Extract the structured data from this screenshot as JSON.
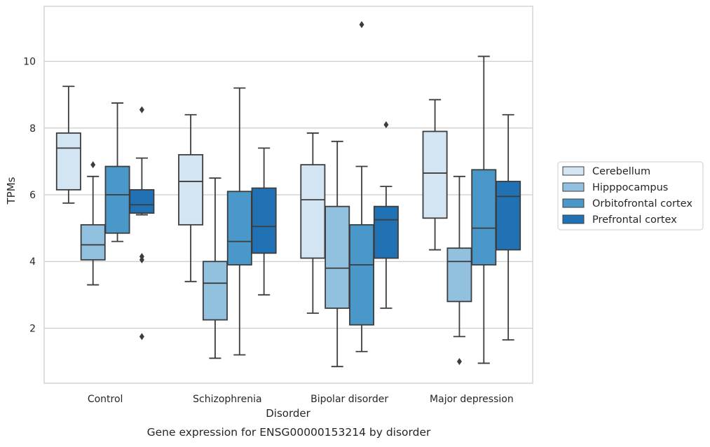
{
  "chart_data": {
    "type": "box",
    "title": "Gene expression for ENSG00000153214 by disorder",
    "xlabel": "Disorder",
    "ylabel": "TPMs",
    "categories": [
      "Control",
      "Schizophrenia",
      "Bipolar disorder",
      "Major depression"
    ],
    "ylim": [
      0.35,
      11.65
    ],
    "yticks": [
      2,
      4,
      6,
      8,
      10
    ],
    "grid": true,
    "legend_position": "right",
    "series": [
      {
        "name": "Cerebellum",
        "color": "#d3e4f3",
        "boxes": [
          {
            "min": 5.75,
            "q1": 6.15,
            "median": 7.4,
            "q3": 7.85,
            "max": 9.25,
            "outliers": []
          },
          {
            "min": 3.4,
            "q1": 5.1,
            "median": 6.4,
            "q3": 7.2,
            "max": 8.4,
            "outliers": []
          },
          {
            "min": 2.45,
            "q1": 4.1,
            "median": 5.85,
            "q3": 6.9,
            "max": 7.85,
            "outliers": []
          },
          {
            "min": 4.35,
            "q1": 5.3,
            "median": 6.65,
            "q3": 7.9,
            "max": 8.85,
            "outliers": []
          }
        ]
      },
      {
        "name": "Hipppocampus",
        "color": "#92c0df",
        "boxes": [
          {
            "min": 3.3,
            "q1": 4.05,
            "median": 4.5,
            "q3": 5.1,
            "max": 6.55,
            "outliers": [
              6.9
            ]
          },
          {
            "min": 1.1,
            "q1": 2.25,
            "median": 3.35,
            "q3": 4.0,
            "max": 6.5,
            "outliers": []
          },
          {
            "min": 0.85,
            "q1": 2.6,
            "median": 3.8,
            "q3": 5.65,
            "max": 7.6,
            "outliers": []
          },
          {
            "min": 1.75,
            "q1": 2.8,
            "median": 4.0,
            "q3": 4.4,
            "max": 6.55,
            "outliers": [
              1.0
            ]
          }
        ]
      },
      {
        "name": "Orbitofrontal cortex",
        "color": "#4a98c9",
        "boxes": [
          {
            "min": 4.6,
            "q1": 4.85,
            "median": 6.0,
            "q3": 6.85,
            "max": 8.75,
            "outliers": []
          },
          {
            "min": 1.2,
            "q1": 3.9,
            "median": 4.6,
            "q3": 6.1,
            "max": 9.2,
            "outliers": []
          },
          {
            "min": 1.3,
            "q1": 2.1,
            "median": 3.9,
            "q3": 5.1,
            "max": 6.85,
            "outliers": [
              11.1
            ]
          },
          {
            "min": 0.95,
            "q1": 3.9,
            "median": 5.0,
            "q3": 6.75,
            "max": 10.15,
            "outliers": []
          }
        ]
      },
      {
        "name": "Prefrontal cortex",
        "color": "#2171b5",
        "boxes": [
          {
            "min": 5.4,
            "q1": 5.45,
            "median": 5.7,
            "q3": 6.15,
            "max": 7.1,
            "outliers": [
              8.55,
              4.15,
              4.05,
              1.75
            ]
          },
          {
            "min": 3.0,
            "q1": 4.25,
            "median": 5.05,
            "q3": 6.2,
            "max": 7.4,
            "outliers": []
          },
          {
            "min": 2.6,
            "q1": 4.1,
            "median": 5.25,
            "q3": 5.65,
            "max": 6.25,
            "outliers": [
              8.1
            ]
          },
          {
            "min": 1.65,
            "q1": 4.35,
            "median": 5.95,
            "q3": 6.4,
            "max": 8.4,
            "outliers": []
          }
        ]
      }
    ]
  }
}
